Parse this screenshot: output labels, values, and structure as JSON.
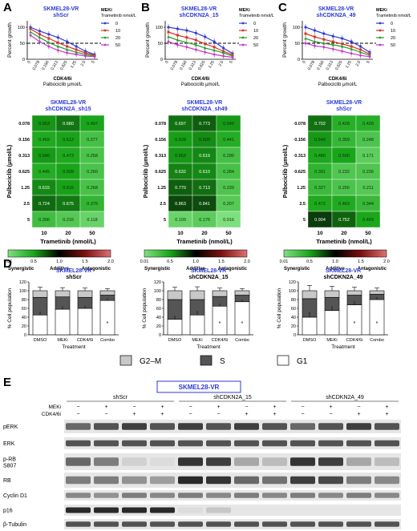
{
  "colors": {
    "blue": "#2d3bd6",
    "red": "#d8322b",
    "green": "#2e9a2e",
    "purple": "#c238c9",
    "syn_light": "#7fe07f",
    "syn": "#19a619",
    "g2m": "#c8c8c8",
    "s": "#555555",
    "g1": "#ffffff"
  },
  "panels": {
    "a": "A",
    "b": "B",
    "c": "C",
    "d": "D",
    "e": "E"
  },
  "line_common": {
    "ylabel": "Percent growth",
    "xlabel1": "CDK4/6i",
    "xlabel2": "Palbociclib μmol/L",
    "legend_title1": "MEKi",
    "legend_title2": "Trametinib nmol/L",
    "legend_items": [
      "0",
      "10",
      "20",
      "50"
    ],
    "y_ticks": [
      "0",
      "50",
      "100"
    ]
  },
  "heat_common": {
    "ylabel": "Palbociclib (μmol/L)",
    "xlabel": "Trametinib (nmol/L)",
    "row_labels": [
      "0.078",
      "0.156",
      "0.313",
      "0.625",
      "1.25",
      "2.5",
      "5"
    ],
    "col_labels": [
      "10",
      "20",
      "50"
    ],
    "scale_ticks": [
      "0.01",
      "0.5",
      "1.0",
      "1.5",
      "2.0"
    ],
    "scale_words": [
      "Synergistic",
      "Additive",
      "Antagonistic"
    ]
  },
  "cycle_common": {
    "ylabel": "% Cell population",
    "xlabel": "Treatment",
    "categories": [
      "DMSO",
      "MEKi",
      "CDK4/6i",
      "Combo"
    ],
    "y_ticks": [
      "0",
      "20",
      "40",
      "60",
      "80",
      "100",
      "120"
    ],
    "legend": [
      "G2–M",
      "S",
      "G1"
    ],
    "asterisk": "*"
  },
  "blot": {
    "header": "SKMEL28-VR",
    "groups": [
      "shScr",
      "shCDKN2A_15",
      "shCDKN2A_49"
    ],
    "treat_labels": [
      "MEKi",
      "CDK4/6i"
    ],
    "meki_signs": [
      "−",
      "+",
      "−",
      "+",
      "−",
      "+",
      "−",
      "+",
      "−",
      "+",
      "−",
      "+"
    ],
    "cdk_signs": [
      "−",
      "−",
      "+",
      "+",
      "−",
      "−",
      "+",
      "+",
      "−",
      "−",
      "+",
      "+"
    ],
    "rows": [
      "pERK",
      "ERK",
      "p-RB S807",
      "RB",
      "Cyclin D1",
      "p16",
      "β-Tubulin"
    ]
  },
  "chart_data": [
    {
      "panel": "A",
      "type": "line",
      "title": "SKMEL28-VR",
      "subtitle": "shScr",
      "categories": [
        "0",
        "0.078",
        "0.156",
        "0.313",
        "0.625",
        "1.25",
        "2.5",
        "5"
      ],
      "ylim": [
        0,
        120
      ],
      "reference_line": 50,
      "series": [
        {
          "name": "0",
          "values": [
            100,
            88,
            78,
            68,
            55,
            40,
            25,
            15
          ]
        },
        {
          "name": "10",
          "values": [
            95,
            78,
            65,
            52,
            40,
            30,
            20,
            12
          ]
        },
        {
          "name": "20",
          "values": [
            85,
            68,
            52,
            40,
            30,
            22,
            15,
            10
          ]
        },
        {
          "name": "50",
          "values": [
            75,
            55,
            40,
            28,
            20,
            15,
            10,
            8
          ]
        }
      ]
    },
    {
      "panel": "B",
      "type": "line",
      "title": "SKMEL28-VR",
      "subtitle": "shCDKN2A_15",
      "categories": [
        "0",
        "0.078",
        "0.156",
        "0.313",
        "0.625",
        "1.25",
        "2.5",
        "5"
      ],
      "ylim": [
        0,
        120
      ],
      "reference_line": 50,
      "series": [
        {
          "name": "0",
          "values": [
            100,
            95,
            90,
            82,
            70,
            55,
            35,
            18
          ]
        },
        {
          "name": "10",
          "values": [
            85,
            75,
            68,
            60,
            48,
            38,
            25,
            14
          ]
        },
        {
          "name": "20",
          "values": [
            70,
            60,
            52,
            45,
            35,
            28,
            20,
            10
          ]
        },
        {
          "name": "50",
          "values": [
            55,
            45,
            38,
            30,
            22,
            15,
            10,
            6
          ]
        }
      ]
    },
    {
      "panel": "C",
      "type": "line",
      "title": "SKMEL28-VR",
      "subtitle": "shCDKN2A_49",
      "categories": [
        "0",
        "0.078",
        "0.156",
        "0.313",
        "0.625",
        "1.25",
        "2.5",
        "5"
      ],
      "ylim": [
        0,
        120
      ],
      "reference_line": 50,
      "series": [
        {
          "name": "0",
          "values": [
            100,
            90,
            80,
            72,
            65,
            55,
            40,
            22
          ]
        },
        {
          "name": "10",
          "values": [
            80,
            70,
            62,
            55,
            48,
            40,
            30,
            16
          ]
        },
        {
          "name": "20",
          "values": [
            65,
            55,
            50,
            45,
            40,
            32,
            22,
            12
          ]
        },
        {
          "name": "50",
          "values": [
            50,
            42,
            38,
            32,
            25,
            18,
            12,
            8
          ]
        }
      ]
    },
    {
      "type": "heatmap",
      "title": "SKMEL28-VR",
      "subtitle": "shCDKN2A_sh15",
      "values": [
        [
          0.563,
          0.68,
          0.497
        ],
        [
          0.469,
          0.512,
          0.277
        ],
        [
          0.546,
          0.473,
          0.258
        ],
        [
          0.445,
          0.509,
          0.26
        ],
        [
          0.615,
          0.516,
          0.268
        ],
        [
          0.724,
          0.675,
          0.375
        ],
        [
          0.306,
          0.216,
          0.118
        ]
      ],
      "scale_range": [
        0.01,
        2.0
      ]
    },
    {
      "type": "heatmap",
      "title": "SKMEL28-VR",
      "subtitle": "shCDKN2A_sh49",
      "values": [
        [
          0.697,
          0.773,
          0.54
        ],
        [
          0.528,
          0.6,
          0.441
        ],
        [
          0.553,
          0.619,
          0.29
        ],
        [
          0.632,
          0.61,
          0.284
        ],
        [
          0.77,
          0.713,
          0.239
        ],
        [
          0.863,
          0.841,
          0.207
        ],
        [
          0.109,
          0.176,
          0.016
        ]
      ],
      "scale_range": [
        0.01,
        2.0
      ]
    },
    {
      "type": "heatmap",
      "title": "SKMEL28-VR",
      "subtitle": "shScr",
      "values": [
        [
          0.702,
          0.428,
          0.428
        ],
        [
          0.549,
          0.359,
          0.248
        ],
        [
          0.48,
          0.5,
          0.171
        ],
        [
          0.391,
          0.232,
          0.236
        ],
        [
          0.327,
          0.256,
          0.211
        ],
        [
          0.472,
          0.463,
          0.344
        ],
        [
          0.904,
          0.752,
          0.493
        ]
      ],
      "scale_range": [
        0.01,
        2.0
      ]
    },
    {
      "type": "bar",
      "stacked": true,
      "title": "SKMEL28-VR",
      "subtitle": "shScr",
      "categories": [
        "DMSO",
        "MEKi",
        "CDK4/6i",
        "Combo"
      ],
      "ylim": [
        0,
        120
      ],
      "series": [
        {
          "name": "G1",
          "values": [
            45,
            58,
            60,
            78
          ]
        },
        {
          "name": "S",
          "values": [
            40,
            28,
            25,
            12
          ]
        },
        {
          "name": "G2–M",
          "values": [
            15,
            14,
            15,
            10
          ]
        }
      ],
      "error": [
        8,
        7,
        6,
        5
      ],
      "asterisks": [
        false,
        false,
        false,
        true
      ]
    },
    {
      "type": "bar",
      "stacked": true,
      "title": "SKMEL28-VR",
      "subtitle": "shCDKN2A_15",
      "categories": [
        "DMSO",
        "MEKi",
        "CDK4/6i",
        "Combo"
      ],
      "ylim": [
        0,
        120
      ],
      "series": [
        {
          "name": "G1",
          "values": [
            35,
            45,
            65,
            75
          ]
        },
        {
          "name": "S",
          "values": [
            45,
            35,
            22,
            15
          ]
        },
        {
          "name": "G2–M",
          "values": [
            20,
            20,
            13,
            10
          ]
        }
      ],
      "error": [
        8,
        9,
        6,
        5
      ],
      "asterisks": [
        false,
        false,
        true,
        true
      ]
    },
    {
      "type": "bar",
      "stacked": true,
      "title": "SKMEL28-VR",
      "subtitle": "shCDKN2A_49",
      "categories": [
        "DMSO",
        "MEKi",
        "CDK4/6i",
        "Combo"
      ],
      "ylim": [
        0,
        120
      ],
      "series": [
        {
          "name": "G1",
          "values": [
            40,
            55,
            68,
            80
          ]
        },
        {
          "name": "S",
          "values": [
            42,
            30,
            22,
            12
          ]
        },
        {
          "name": "G2–M",
          "values": [
            18,
            15,
            10,
            8
          ]
        }
      ],
      "error": [
        12,
        10,
        8,
        6
      ],
      "asterisks": [
        false,
        false,
        true,
        true
      ]
    }
  ]
}
